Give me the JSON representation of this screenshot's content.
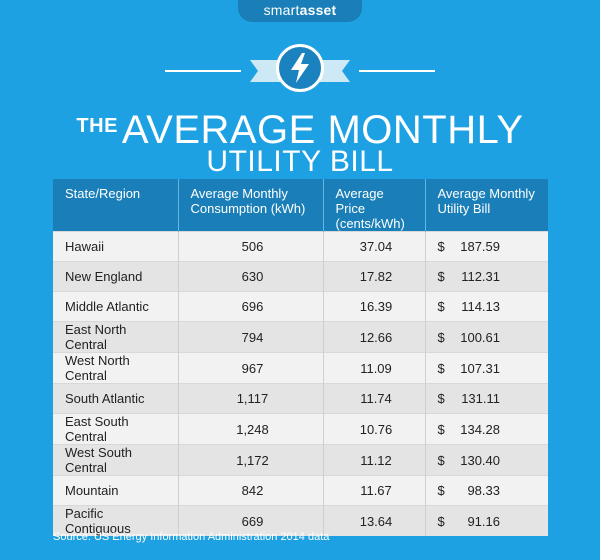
{
  "brand": {
    "part1": "smart",
    "part2": "asset"
  },
  "title": {
    "prefix": "THE",
    "line1": "AVERAGE MONTHLY",
    "line2": "UTILITY BILL"
  },
  "table": {
    "headers": [
      "State/Region",
      "Average Monthly Consumption (kWh)",
      "Average Price (cents/kWh)",
      "Average Monthly Utility Bill"
    ],
    "rows": [
      {
        "region": "Hawaii",
        "consumption": "506",
        "price": "37.04",
        "currency": "$",
        "bill": "187.59"
      },
      {
        "region": "New England",
        "consumption": "630",
        "price": "17.82",
        "currency": "$",
        "bill": "112.31"
      },
      {
        "region": "Middle Atlantic",
        "consumption": "696",
        "price": "16.39",
        "currency": "$",
        "bill": "114.13"
      },
      {
        "region": "East North Central",
        "consumption": "794",
        "price": "12.66",
        "currency": "$",
        "bill": "100.61"
      },
      {
        "region": "West North Central",
        "consumption": "967",
        "price": "11.09",
        "currency": "$",
        "bill": "107.31"
      },
      {
        "region": "South Atlantic",
        "consumption": "1,117",
        "price": "11.74",
        "currency": "$",
        "bill": "131.11"
      },
      {
        "region": "East South Central",
        "consumption": "1,248",
        "price": "10.76",
        "currency": "$",
        "bill": "134.28"
      },
      {
        "region": "West South Central",
        "consumption": "1,172",
        "price": "11.12",
        "currency": "$",
        "bill": "130.40"
      },
      {
        "region": "Mountain",
        "consumption": "842",
        "price": "11.67",
        "currency": "$",
        "bill": "98.33"
      },
      {
        "region": "Pacific Contiguous",
        "consumption": "669",
        "price": "13.64",
        "currency": "$",
        "bill": "91.16"
      }
    ]
  },
  "source": "Source: US Energy Information Administration 2014 data",
  "colors": {
    "background": "#1da1e2",
    "header": "#1a7fb8",
    "row_light": "#f2f2f2",
    "row_dark": "#e4e4e4"
  },
  "icon": "lightning-bolt-icon"
}
